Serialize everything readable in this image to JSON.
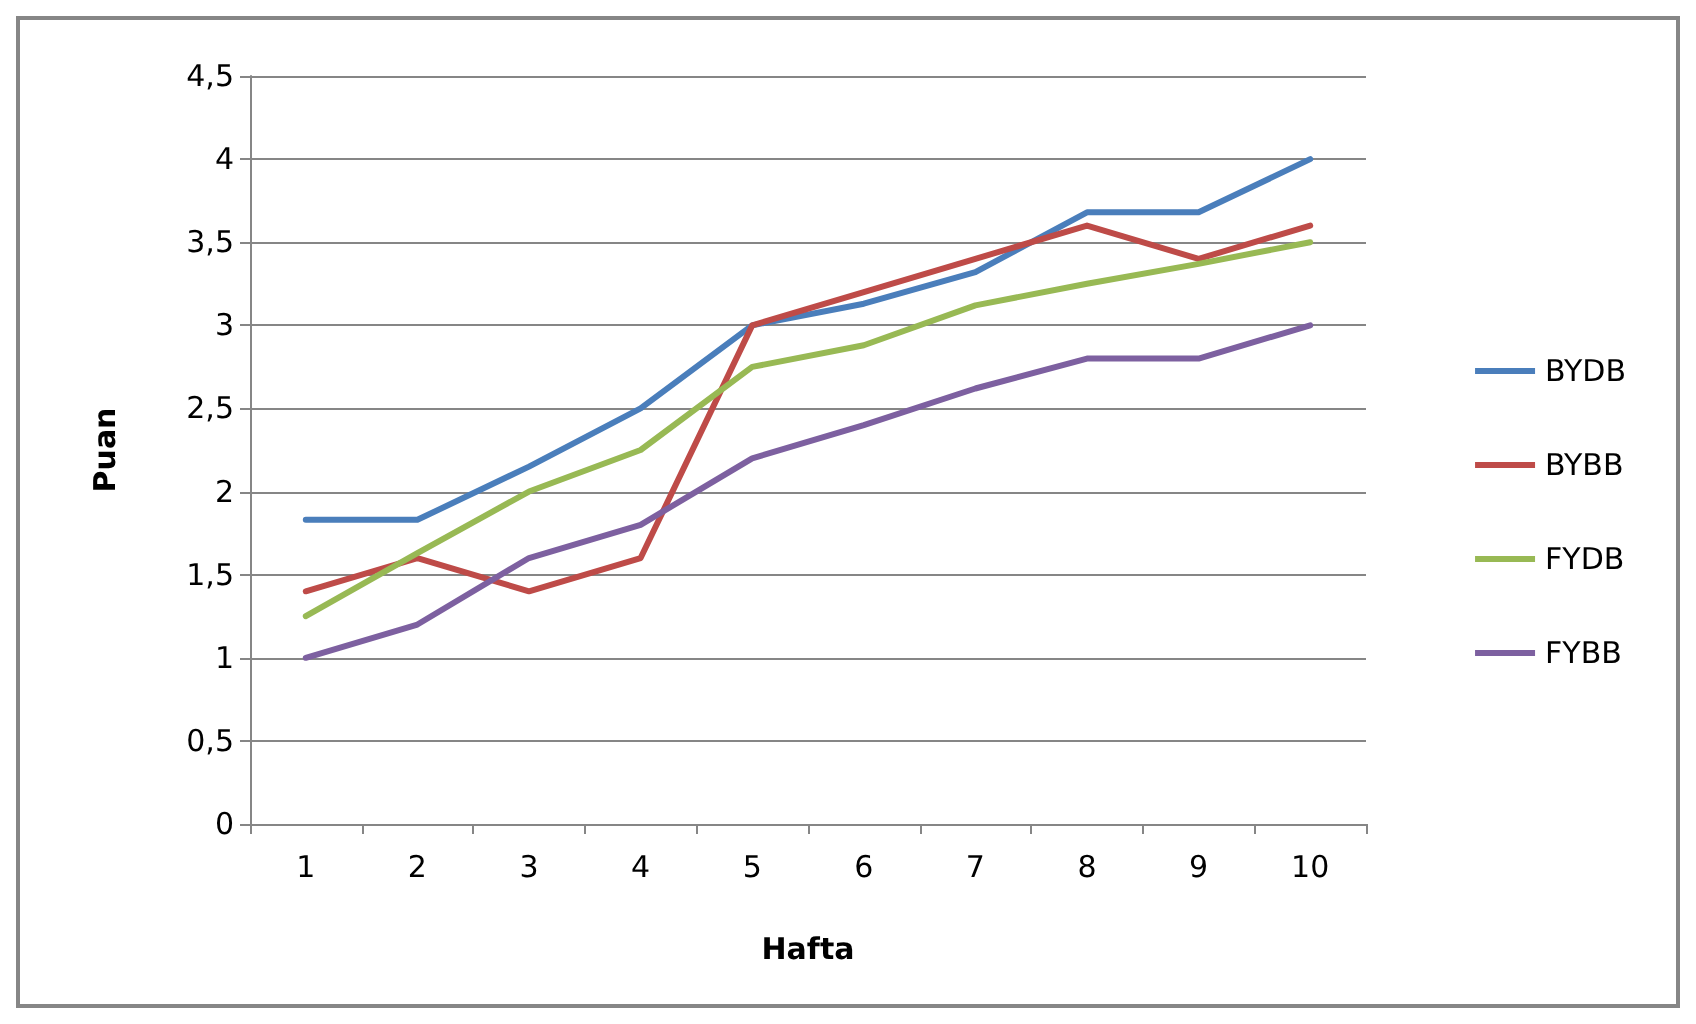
{
  "chart_data": {
    "type": "line",
    "xlabel": "Hafta",
    "ylabel": "Puan",
    "categories": [
      "1",
      "2",
      "3",
      "4",
      "5",
      "6",
      "7",
      "8",
      "9",
      "10"
    ],
    "series": [
      {
        "name": "BYDB",
        "color": "#4a7ebb",
        "values": [
          1.83,
          1.83,
          2.15,
          2.5,
          3.0,
          3.13,
          3.32,
          3.68,
          3.68,
          4.0
        ]
      },
      {
        "name": "BYBB",
        "color": "#be4b48",
        "values": [
          1.4,
          1.6,
          1.4,
          1.6,
          3.0,
          3.2,
          3.4,
          3.6,
          3.4,
          3.6
        ]
      },
      {
        "name": "FYDB",
        "color": "#98b954",
        "values": [
          1.25,
          1.63,
          2.0,
          2.25,
          2.75,
          2.88,
          3.12,
          3.25,
          3.37,
          3.5
        ]
      },
      {
        "name": "FYBB",
        "color": "#7d60a0",
        "values": [
          1.0,
          1.2,
          1.6,
          1.8,
          2.2,
          2.4,
          2.62,
          2.8,
          2.8,
          3.0
        ]
      }
    ],
    "ylim": [
      0,
      4.5
    ],
    "yticks": [
      0,
      {
        "value": 0.5,
        "label": "0,5"
      },
      1,
      {
        "value": 1.5,
        "label": "1,5"
      },
      2,
      {
        "value": 2.5,
        "label": "2,5"
      },
      3,
      {
        "value": 3.5,
        "label": "3,5"
      },
      4,
      {
        "value": 4.5,
        "label": "4,5"
      }
    ],
    "grid": "y",
    "legend": "right",
    "marker": "none",
    "line_style": "solid"
  }
}
